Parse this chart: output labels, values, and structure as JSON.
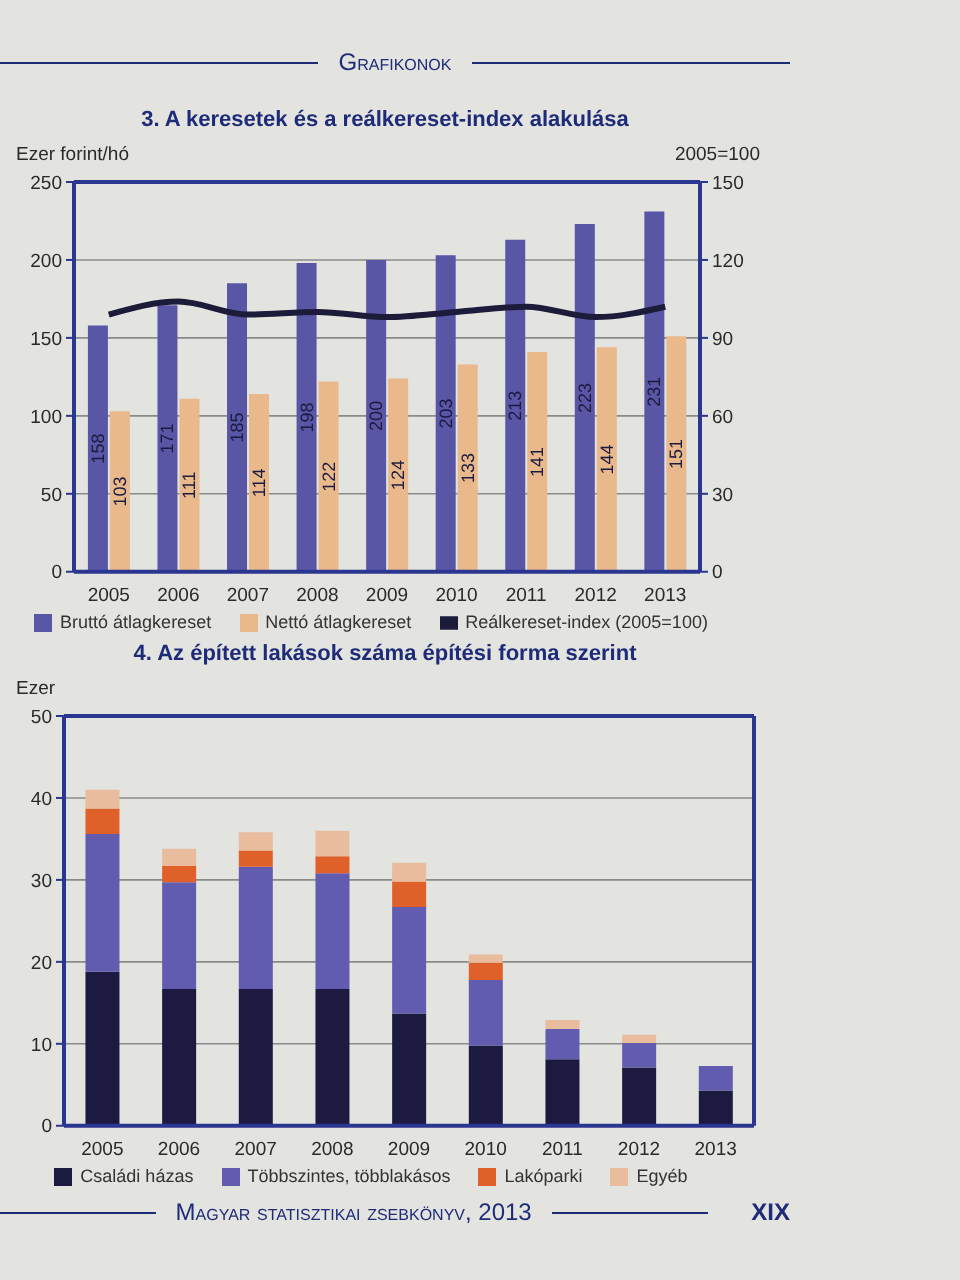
{
  "chart_data": [
    {
      "type": "bar",
      "title": "3. A keresetek és a reálkereset-index alakulása",
      "ylabel": "Ezer forint/hó",
      "y2label": "2005=100",
      "categories": [
        "2005",
        "2006",
        "2007",
        "2008",
        "2009",
        "2010",
        "2011",
        "2012",
        "2013"
      ],
      "series": [
        {
          "name": "Bruttó átlagkereset",
          "color": "#5a56a6",
          "values": [
            158,
            171,
            185,
            198,
            200,
            203,
            213,
            223,
            231
          ],
          "value_labels": [
            "158",
            "171",
            "185",
            "198",
            "200",
            "203",
            "213",
            "223",
            "231"
          ]
        },
        {
          "name": "Nettó átlagkereset",
          "color": "#e9b98c",
          "values": [
            103,
            111,
            114,
            122,
            124,
            133,
            141,
            144,
            151
          ],
          "value_labels": [
            "103",
            "111",
            "114",
            "122",
            "124",
            "133",
            "141",
            "144",
            "151"
          ]
        },
        {
          "name": "Reálkereset-index (2005=100)",
          "type": "line",
          "axis": "y2",
          "color": "#1c1c3a",
          "values": [
            99,
            104,
            99,
            100,
            98,
            100,
            102,
            98,
            102
          ]
        }
      ],
      "ylim": [
        0,
        250
      ],
      "yticks": [
        0,
        50,
        100,
        150,
        200,
        250
      ],
      "y2lim": [
        0,
        150
      ],
      "y2ticks": [
        0,
        30,
        60,
        90,
        120,
        150
      ],
      "grid": "y",
      "legend": "bottom",
      "marker": "none",
      "line_style": "solid",
      "annotations": [
        "Grafikonok"
      ]
    },
    {
      "type": "bar",
      "stacked": true,
      "title": "4. Az épített lakások száma építési forma szerint",
      "ylabel": "Ezer",
      "categories": [
        "2005",
        "2006",
        "2007",
        "2008",
        "2009",
        "2010",
        "2011",
        "2012",
        "2013"
      ],
      "series": [
        {
          "name": "Családi házas",
          "color": "#1c1a40",
          "values": [
            18.8,
            16.7,
            16.7,
            16.7,
            13.7,
            9.8,
            8.1,
            7.1,
            4.3
          ]
        },
        {
          "name": "Többszintes, többlakásos",
          "color": "#625cb0",
          "values": [
            16.8,
            13.0,
            14.9,
            14.1,
            13.0,
            8.0,
            3.7,
            3.0,
            3.0
          ]
        },
        {
          "name": "Lakóparki",
          "color": "#e0602a",
          "values": [
            3.1,
            2.0,
            2.0,
            2.1,
            3.1,
            2.1,
            null,
            null,
            null
          ]
        },
        {
          "name": "Egyéb",
          "color": "#e8bc9c",
          "values": [
            2.3,
            2.1,
            2.2,
            3.1,
            2.3,
            1.0,
            1.1,
            1.0,
            null
          ]
        }
      ],
      "ylim": [
        0,
        50
      ],
      "yticks": [
        0,
        10,
        20,
        30,
        40,
        50
      ],
      "grid": "y",
      "legend": "bottom",
      "annotations": [
        "Magyar statisztikai zsebkönyv, 2013",
        "XIX"
      ]
    }
  ]
}
